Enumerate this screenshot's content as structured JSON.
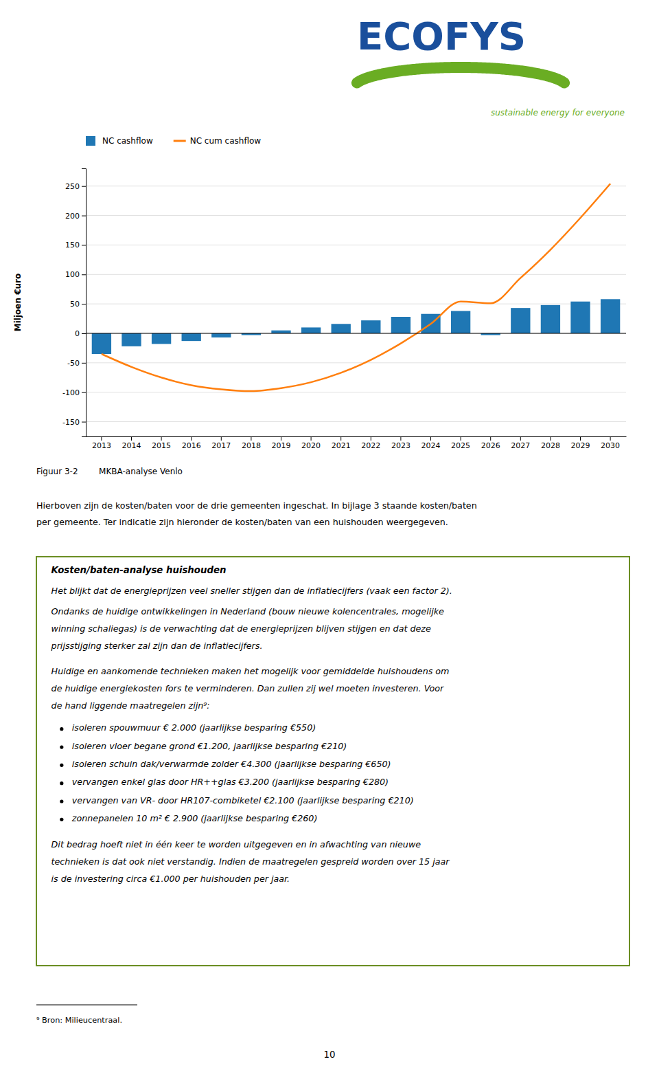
{
  "chart_data": {
    "type": "bar",
    "categories": [
      "2013",
      "2014",
      "2015",
      "2016",
      "2017",
      "2018",
      "2019",
      "2020",
      "2021",
      "2022",
      "2023",
      "2024",
      "2025",
      "2026",
      "2027",
      "2028",
      "2029",
      "2030"
    ],
    "series": [
      {
        "name": "NC cashflow",
        "type": "bar",
        "values": [
          -35,
          -22,
          -18,
          -13,
          -7,
          -3,
          5,
          10,
          16,
          22,
          28,
          33,
          38,
          -3,
          43,
          48,
          54,
          58
        ]
      },
      {
        "name": "NC cum cashflow",
        "type": "line",
        "values": [
          -35,
          -57,
          -75,
          -88,
          -95,
          -98,
          -93,
          -83,
          -67,
          -45,
          -17,
          16,
          54,
          51,
          94,
          142,
          196,
          254
        ]
      }
    ],
    "y_label": "Miljoen €uro",
    "ylim": [
      -175,
      280
    ],
    "yticks": [
      -150,
      -100,
      -50,
      0,
      50,
      100,
      150,
      200,
      250
    ],
    "grid": true,
    "legend": "top-left"
  },
  "page": {
    "logo_text": "ECOFYS",
    "logo_color": "#1A4F9C",
    "swoosh_color": "#6AAD23",
    "tagline": "sustainable energy for everyone",
    "caption": "Figuur 3-2        MKBA-analyse Venlo",
    "intro": [
      "Hierboven zijn de kosten/baten voor de drie gemeenten ingeschat. In bijlage 3 staande kosten/baten",
      "per gemeente. Ter indicatie zijn hieronder de kosten/baten van een huishouden weergegeven."
    ],
    "box_title": "Kosten/baten-analyse huishouden",
    "box_border_color": "#6B8E23",
    "box_lines": [
      "Het blijkt dat de energieprijzen veel sneller stijgen dan de inflatiecijfers (vaak een factor 2).",
      "Ondanks de huidige ontwikkelingen in Nederland (bouw nieuwe kolencentrales, mogelijke",
      "winning schaliegas) is de verwachting dat de energieprijzen blijven stijgen en dat deze",
      "prijsstijging sterker zal zijn dan de inflatiecijfers.",
      "Huidige en aankomende technieken maken het mogelijk voor gemiddelde huishoudens om",
      "de huidige energiekosten fors te verminderen. Dan zullen zij wel moeten investeren. Voor",
      "de hand liggende maatregelen zijn⁹:"
    ],
    "bullet_items": [
      "isoleren spouwmuur € 2.000 (jaarlijkse besparing €550)",
      "isoleren vloer begane grond €1.200, jaarlijkse besparing €210)",
      "isoleren schuin dak/verwarmde zolder €4.300 (jaarlijkse besparing €650)",
      "vervangen enkel glas door HR++glas €3.200 (jaarlijkse besparing €280)",
      "vervangen van VR- door HR107-combiketel €2.100 (jaarlijkse besparing €210)",
      "zonnepanelen 10 m² € 2.900 (jaarlijkse besparing €260)"
    ],
    "box_close": [
      "Dit bedrag hoeft niet in één keer te worden uitgegeven en in afwachting van nieuwe",
      "technieken is dat ook niet verstandig. Indien de maatregelen gespreid worden over 15 jaar",
      "is de investering circa €1.000 per huishouden per jaar."
    ],
    "footnote": "⁹ Bron: Milieucentraal.",
    "page_number": "10"
  }
}
